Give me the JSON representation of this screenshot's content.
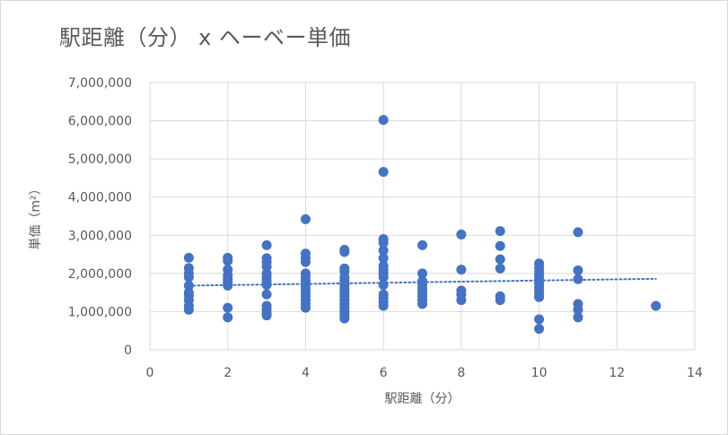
{
  "chart_data": {
    "type": "scatter",
    "title": "駅距離（分） x ヘーベー単価",
    "xlabel": "駅距離（分）",
    "ylabel": "単価（m²）",
    "xlim": [
      0,
      14
    ],
    "ylim": [
      0,
      7000000
    ],
    "x_ticks": [
      0,
      2,
      4,
      6,
      8,
      10,
      12,
      14
    ],
    "y_ticks": [
      0,
      1000000,
      2000000,
      3000000,
      4000000,
      5000000,
      6000000,
      7000000
    ],
    "x_tick_labels": [
      "0",
      "2",
      "4",
      "6",
      "8",
      "10",
      "12",
      "14"
    ],
    "y_tick_labels": [
      "0",
      "1,000,000",
      "2,000,000",
      "3,000,000",
      "4,000,000",
      "5,000,000",
      "6,000,000",
      "7,000,000"
    ],
    "grid": true,
    "marker_color": "#4472c4",
    "trendline": {
      "type": "linear",
      "style": "dotted",
      "color": "#4472c4",
      "x": [
        1,
        13
      ],
      "y": [
        1680000,
        1860000
      ]
    },
    "series": [
      {
        "points": [
          [
            1,
            2410000
          ],
          [
            1,
            2140000
          ],
          [
            1,
            2000000
          ],
          [
            1,
            1900000
          ],
          [
            1,
            1680000
          ],
          [
            1,
            1500000
          ],
          [
            1,
            1420000
          ],
          [
            1,
            1300000
          ],
          [
            1,
            1150000
          ],
          [
            1,
            1050000
          ],
          [
            2,
            2410000
          ],
          [
            2,
            2330000
          ],
          [
            2,
            2100000
          ],
          [
            2,
            1950000
          ],
          [
            2,
            1850000
          ],
          [
            2,
            1760000
          ],
          [
            2,
            1680000
          ],
          [
            2,
            1100000
          ],
          [
            2,
            850000
          ],
          [
            3,
            2740000
          ],
          [
            3,
            2400000
          ],
          [
            3,
            2300000
          ],
          [
            3,
            2180000
          ],
          [
            3,
            2000000
          ],
          [
            3,
            1900000
          ],
          [
            3,
            1800000
          ],
          [
            3,
            1700000
          ],
          [
            3,
            1450000
          ],
          [
            3,
            1150000
          ],
          [
            3,
            1050000
          ],
          [
            3,
            950000
          ],
          [
            3,
            900000
          ],
          [
            4,
            3420000
          ],
          [
            4,
            2520000
          ],
          [
            4,
            2400000
          ],
          [
            4,
            2300000
          ],
          [
            4,
            2000000
          ],
          [
            4,
            1900000
          ],
          [
            4,
            1800000
          ],
          [
            4,
            1700000
          ],
          [
            4,
            1600000
          ],
          [
            4,
            1500000
          ],
          [
            4,
            1400000
          ],
          [
            4,
            1300000
          ],
          [
            4,
            1200000
          ],
          [
            4,
            1100000
          ],
          [
            5,
            2620000
          ],
          [
            5,
            2560000
          ],
          [
            5,
            2130000
          ],
          [
            5,
            2050000
          ],
          [
            5,
            1900000
          ],
          [
            5,
            1800000
          ],
          [
            5,
            1700000
          ],
          [
            5,
            1600000
          ],
          [
            5,
            1500000
          ],
          [
            5,
            1400000
          ],
          [
            5,
            1300000
          ],
          [
            5,
            1200000
          ],
          [
            5,
            1100000
          ],
          [
            5,
            1000000
          ],
          [
            5,
            900000
          ],
          [
            5,
            820000
          ],
          [
            6,
            6020000
          ],
          [
            6,
            4660000
          ],
          [
            6,
            2900000
          ],
          [
            6,
            2800000
          ],
          [
            6,
            2600000
          ],
          [
            6,
            2400000
          ],
          [
            6,
            2200000
          ],
          [
            6,
            2100000
          ],
          [
            6,
            2000000
          ],
          [
            6,
            1900000
          ],
          [
            6,
            1700000
          ],
          [
            6,
            1450000
          ],
          [
            6,
            1350000
          ],
          [
            6,
            1250000
          ],
          [
            6,
            1150000
          ],
          [
            7,
            2740000
          ],
          [
            7,
            2000000
          ],
          [
            7,
            1800000
          ],
          [
            7,
            1700000
          ],
          [
            7,
            1600000
          ],
          [
            7,
            1500000
          ],
          [
            7,
            1400000
          ],
          [
            7,
            1300000
          ],
          [
            7,
            1200000
          ],
          [
            8,
            3020000
          ],
          [
            8,
            2100000
          ],
          [
            8,
            1550000
          ],
          [
            8,
            1450000
          ],
          [
            8,
            1300000
          ],
          [
            9,
            3110000
          ],
          [
            9,
            2720000
          ],
          [
            9,
            2370000
          ],
          [
            9,
            2130000
          ],
          [
            9,
            1400000
          ],
          [
            9,
            1300000
          ],
          [
            10,
            2260000
          ],
          [
            10,
            2150000
          ],
          [
            10,
            2050000
          ],
          [
            10,
            1950000
          ],
          [
            10,
            1850000
          ],
          [
            10,
            1750000
          ],
          [
            10,
            1650000
          ],
          [
            10,
            1550000
          ],
          [
            10,
            1450000
          ],
          [
            10,
            1380000
          ],
          [
            10,
            800000
          ],
          [
            10,
            550000
          ],
          [
            11,
            3080000
          ],
          [
            11,
            2080000
          ],
          [
            11,
            1850000
          ],
          [
            11,
            1200000
          ],
          [
            11,
            1050000
          ],
          [
            11,
            850000
          ],
          [
            13,
            1150000
          ]
        ]
      }
    ]
  }
}
